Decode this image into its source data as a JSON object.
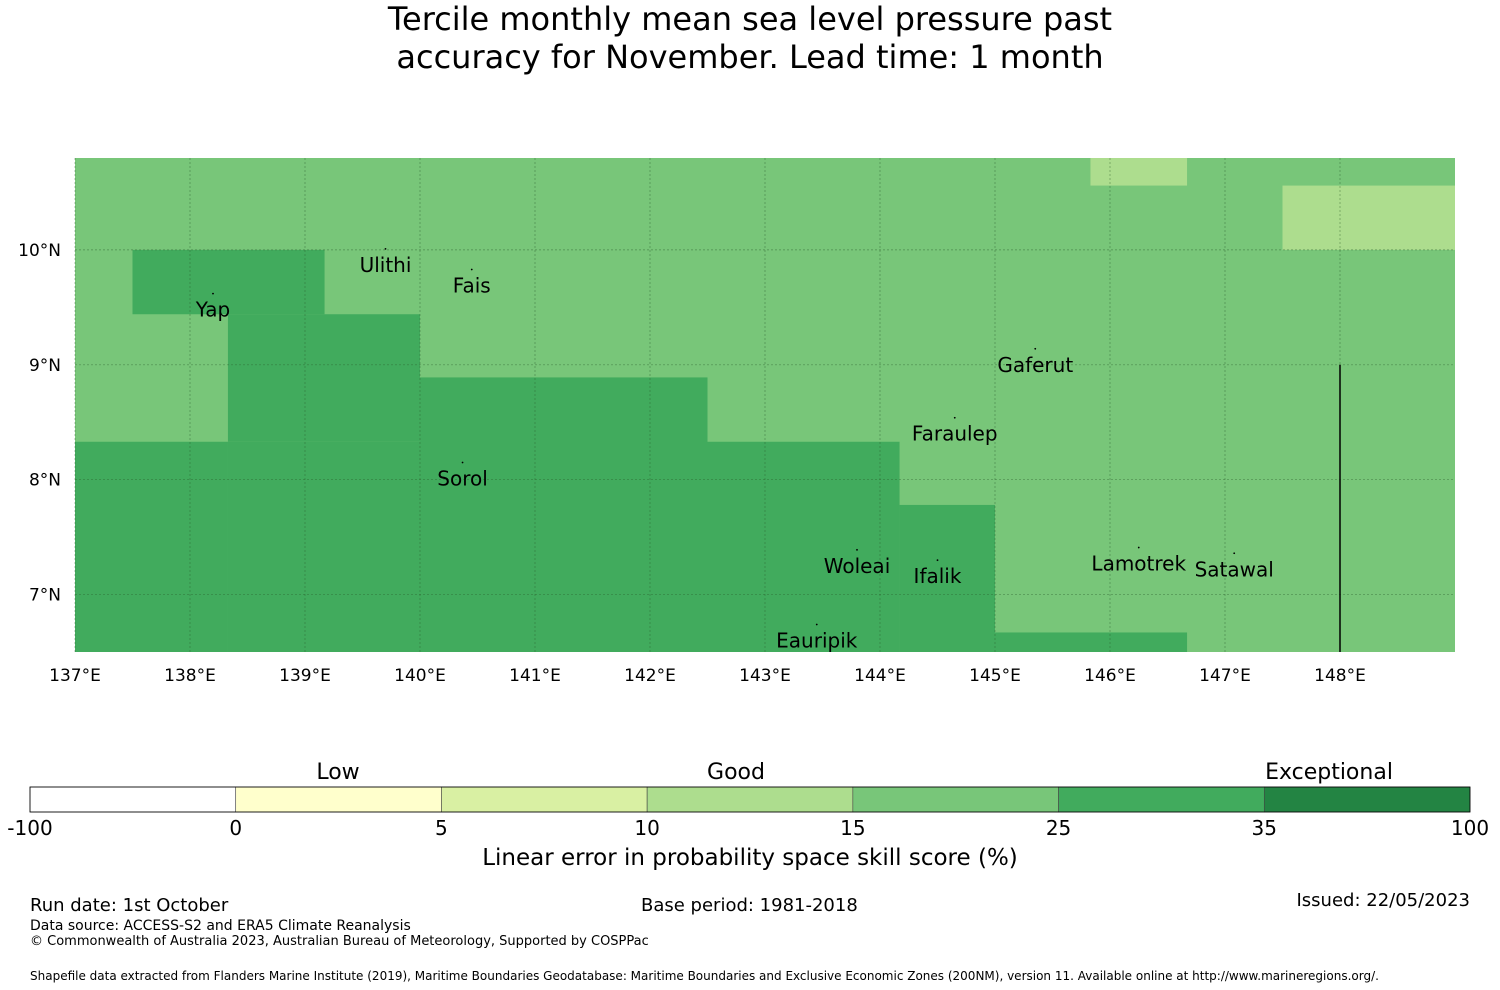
{
  "title": "Tercile monthly mean sea level pressure past\naccuracy for November. Lead time: 1 month",
  "map": {
    "lon_range": [
      137,
      149
    ],
    "lat_range": [
      6.5,
      10.8
    ],
    "lon_ticks": [
      "137°E",
      "138°E",
      "139°E",
      "140°E",
      "141°E",
      "142°E",
      "143°E",
      "144°E",
      "145°E",
      "146°E",
      "147°E",
      "148°E"
    ],
    "lat_ticks": [
      "10°N",
      "9°N",
      "8°N",
      "7°N"
    ],
    "base_color": "#78c679",
    "regions": [
      {
        "color": "#41ab5d",
        "lon": [
          137.5,
          139.17
        ],
        "lat": [
          9.44,
          10.0
        ]
      },
      {
        "color": "#41ab5d",
        "lon": [
          138.33,
          140.0
        ],
        "lat": [
          8.33,
          9.44
        ]
      },
      {
        "color": "#41ab5d",
        "lon": [
          137.0,
          138.33
        ],
        "lat": [
          6.5,
          8.33
        ]
      },
      {
        "color": "#41ab5d",
        "lon": [
          138.33,
          140.0
        ],
        "lat": [
          6.5,
          8.33
        ]
      },
      {
        "color": "#41ab5d",
        "lon": [
          140.0,
          142.5
        ],
        "lat": [
          6.5,
          8.89
        ]
      },
      {
        "color": "#41ab5d",
        "lon": [
          142.5,
          144.17
        ],
        "lat": [
          6.5,
          8.33
        ]
      },
      {
        "color": "#41ab5d",
        "lon": [
          144.17,
          145.0
        ],
        "lat": [
          6.5,
          7.78
        ]
      },
      {
        "color": "#41ab5d",
        "lon": [
          145.0,
          146.67
        ],
        "lat": [
          6.5,
          6.67
        ]
      },
      {
        "color": "#addd8e",
        "lon": [
          145.83,
          146.67
        ],
        "lat": [
          10.56,
          10.8
        ]
      },
      {
        "color": "#addd8e",
        "lon": [
          147.5,
          149.0
        ],
        "lat": [
          10.0,
          10.56
        ]
      }
    ],
    "places": [
      {
        "name": "Ulithi",
        "lon": 139.7,
        "lat": 9.87
      },
      {
        "name": "Yap",
        "lon": 138.2,
        "lat": 9.48
      },
      {
        "name": "Fais",
        "lon": 140.45,
        "lat": 9.69
      },
      {
        "name": "Gaferut",
        "lon": 145.35,
        "lat": 9.0
      },
      {
        "name": "Faraulep",
        "lon": 144.65,
        "lat": 8.4
      },
      {
        "name": "Sorol",
        "lon": 140.37,
        "lat": 8.01
      },
      {
        "name": "Woleai",
        "lon": 143.8,
        "lat": 7.25
      },
      {
        "name": "Ifalik",
        "lon": 144.5,
        "lat": 7.16
      },
      {
        "name": "Lamotrek",
        "lon": 146.25,
        "lat": 7.27
      },
      {
        "name": "Satawal",
        "lon": 147.08,
        "lat": 7.22
      },
      {
        "name": "Eauripik",
        "lon": 143.45,
        "lat": 6.6
      }
    ],
    "boundary_line": {
      "lon": 148.0,
      "lat": [
        6.5,
        9.0
      ]
    }
  },
  "colorbar": {
    "bins": [
      {
        "from": "-100",
        "to": "0",
        "color": "#ffffff"
      },
      {
        "from": "0",
        "to": "5",
        "color": "#ffffcc"
      },
      {
        "from": "5",
        "to": "10",
        "color": "#d9f0a3"
      },
      {
        "from": "10",
        "to": "15",
        "color": "#addd8e"
      },
      {
        "from": "15",
        "to": "25",
        "color": "#78c679"
      },
      {
        "from": "25",
        "to": "35",
        "color": "#41ab5d"
      },
      {
        "from": "35",
        "to": "100",
        "color": "#238443"
      }
    ],
    "ticks": [
      "-100",
      "0",
      "5",
      "10",
      "15",
      "25",
      "35",
      "100"
    ],
    "categories": {
      "low": "Low",
      "good": "Good",
      "exceptional": "Exceptional"
    },
    "label": "Linear error in probability space skill score (%)"
  },
  "footer": {
    "run_date": "Run date: 1st October",
    "base_period": "Base period: 1981-2018",
    "issued": "Issued: 22/05/2023",
    "data_source": "Data source: ACCESS-S2 and ERA5 Climate Reanalysis",
    "copyright": "© Commonwealth of Australia 2023, Australian Bureau of Meteorology, Supported by COSPPac",
    "shapefile": "Shapefile data extracted from Flanders Marine Institute (2019), Maritime Boundaries Geodatabase: Maritime Boundaries and Exclusive Economic Zones (200NM), version 11. Available online at http://www.marineregions.org/."
  }
}
